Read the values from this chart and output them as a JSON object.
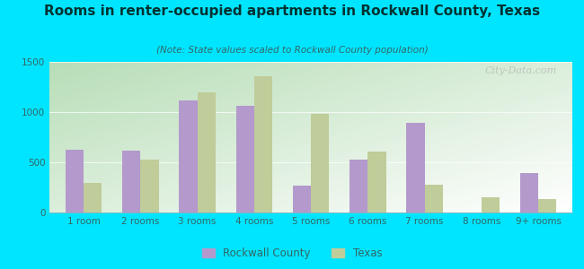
{
  "title": "Rooms in renter-occupied apartments in Rockwall County, Texas",
  "subtitle": "(Note: State values scaled to Rockwall County population)",
  "categories": [
    "1 room",
    "2 rooms",
    "3 rooms",
    "4 rooms",
    "5 rooms",
    "6 rooms",
    "7 rooms",
    "8 rooms",
    "9+ rooms"
  ],
  "rockwall_values": [
    625,
    620,
    1120,
    1065,
    265,
    525,
    895,
    0,
    395
  ],
  "texas_values": [
    295,
    530,
    1195,
    1355,
    980,
    610,
    275,
    155,
    130
  ],
  "rockwall_color": "#b399cc",
  "texas_color": "#c0cc99",
  "bg_outer": "#00e5ff",
  "bg_plot_top": "#e8f5e8",
  "bg_plot_bottom": "#c8e8c8",
  "title_color": "#003333",
  "subtitle_color": "#336666",
  "tick_color": "#336666",
  "ylim": [
    0,
    1500
  ],
  "yticks": [
    0,
    500,
    1000,
    1500
  ],
  "watermark": "City-Data.com",
  "legend_rockwall": "Rockwall County",
  "legend_texas": "Texas"
}
